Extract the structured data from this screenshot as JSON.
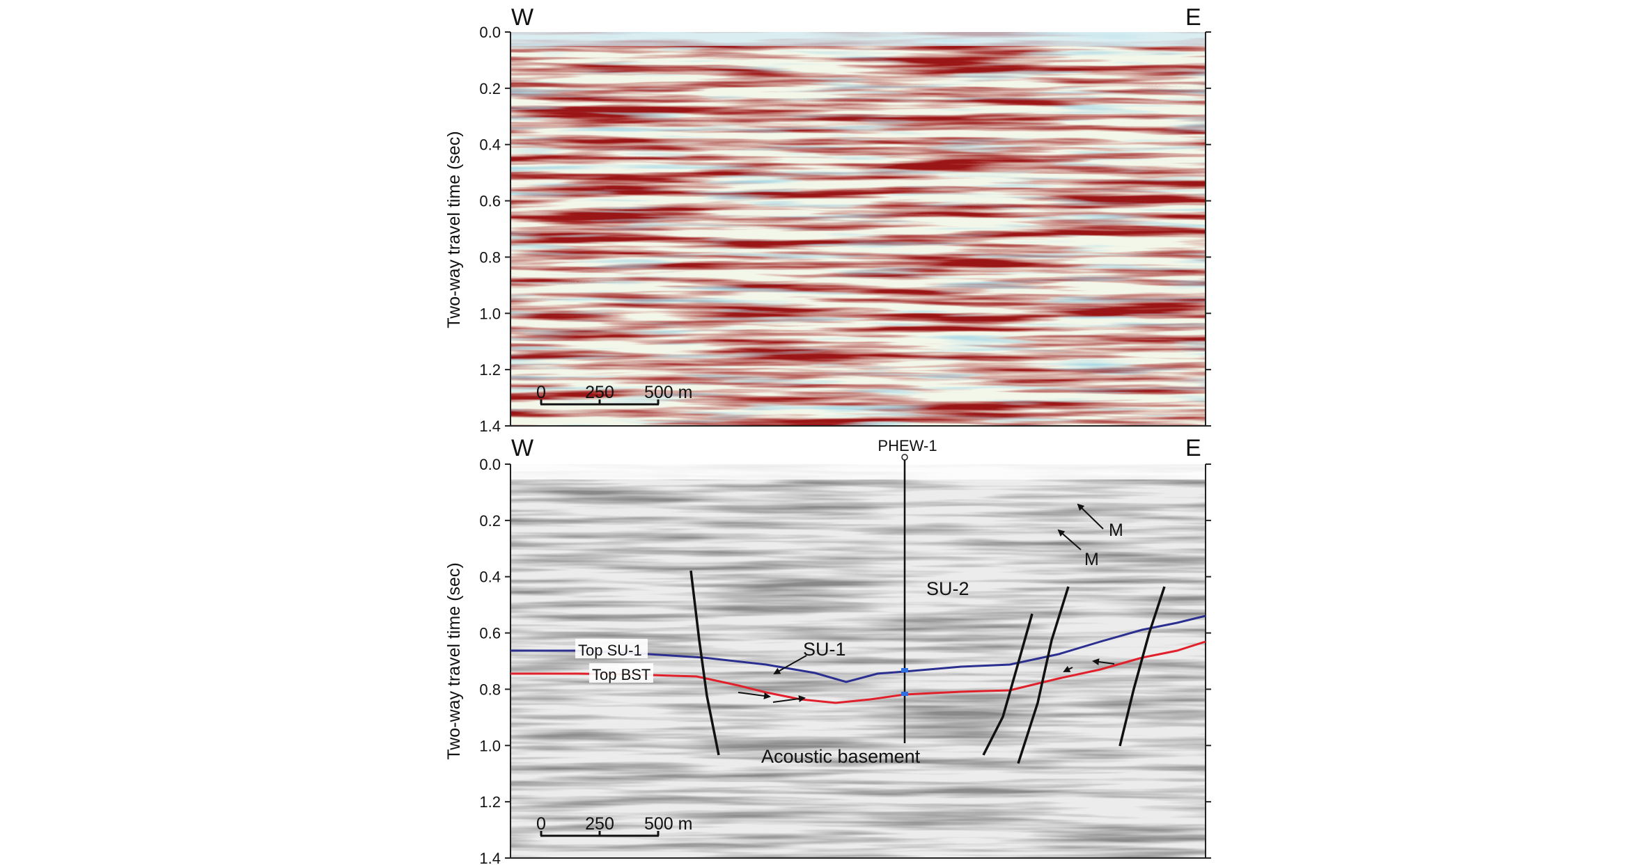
{
  "panel_top": {
    "west_label": "W",
    "east_label": "E",
    "y_axis_label": "Two-way travel time (sec)",
    "y_ticks": [
      "0.0",
      "0.2",
      "0.4",
      "0.6",
      "0.8",
      "1.0",
      "1.2",
      "1.4"
    ],
    "scale_bar": {
      "zero": "0",
      "mid": "250",
      "end": "500 m"
    }
  },
  "panel_bottom": {
    "west_label": "W",
    "east_label": "E",
    "well_label": "PHEW-1",
    "y_axis_label": "Two-way travel time (sec)",
    "y_ticks": [
      "0.0",
      "0.2",
      "0.4",
      "0.6",
      "0.8",
      "1.0",
      "1.2",
      "1.4"
    ],
    "scale_bar": {
      "zero": "0",
      "mid": "250",
      "end": "500 m"
    },
    "annotations": {
      "top_su1": "Top SU-1",
      "top_bst": "Top BST",
      "su1": "SU-1",
      "su2": "SU-2",
      "acoustic_basement": "Acoustic basement",
      "m1": "M",
      "m2": "M"
    },
    "colors": {
      "top_su1_line": "#2b2f8f",
      "top_bst_line": "#e0202a"
    }
  }
}
